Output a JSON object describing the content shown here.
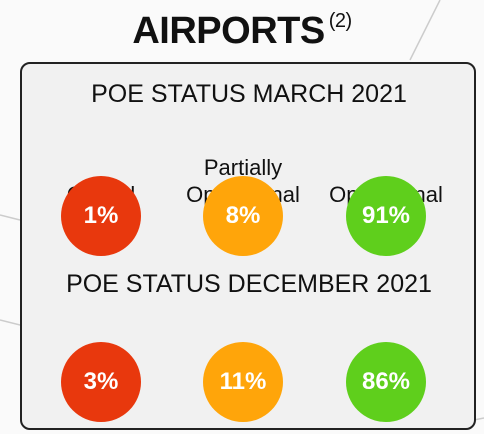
{
  "title": "AIRPORTS",
  "title_note": "(2)",
  "sections": [
    {
      "heading": "POE STATUS MARCH 2021",
      "items": [
        {
          "label": "Closed",
          "value": "1%",
          "color": "#e8380d"
        },
        {
          "label": "Partially Operational",
          "value": "8%",
          "color": "#ffa50a"
        },
        {
          "label": "Operational",
          "value": "91%",
          "color": "#5fcf1c"
        }
      ]
    },
    {
      "heading": "POE STATUS DECEMBER 2021",
      "items": [
        {
          "value": "3%",
          "color": "#e8380d"
        },
        {
          "value": "11%",
          "color": "#ffa50a"
        },
        {
          "value": "86%",
          "color": "#5fcf1c"
        }
      ]
    }
  ]
}
